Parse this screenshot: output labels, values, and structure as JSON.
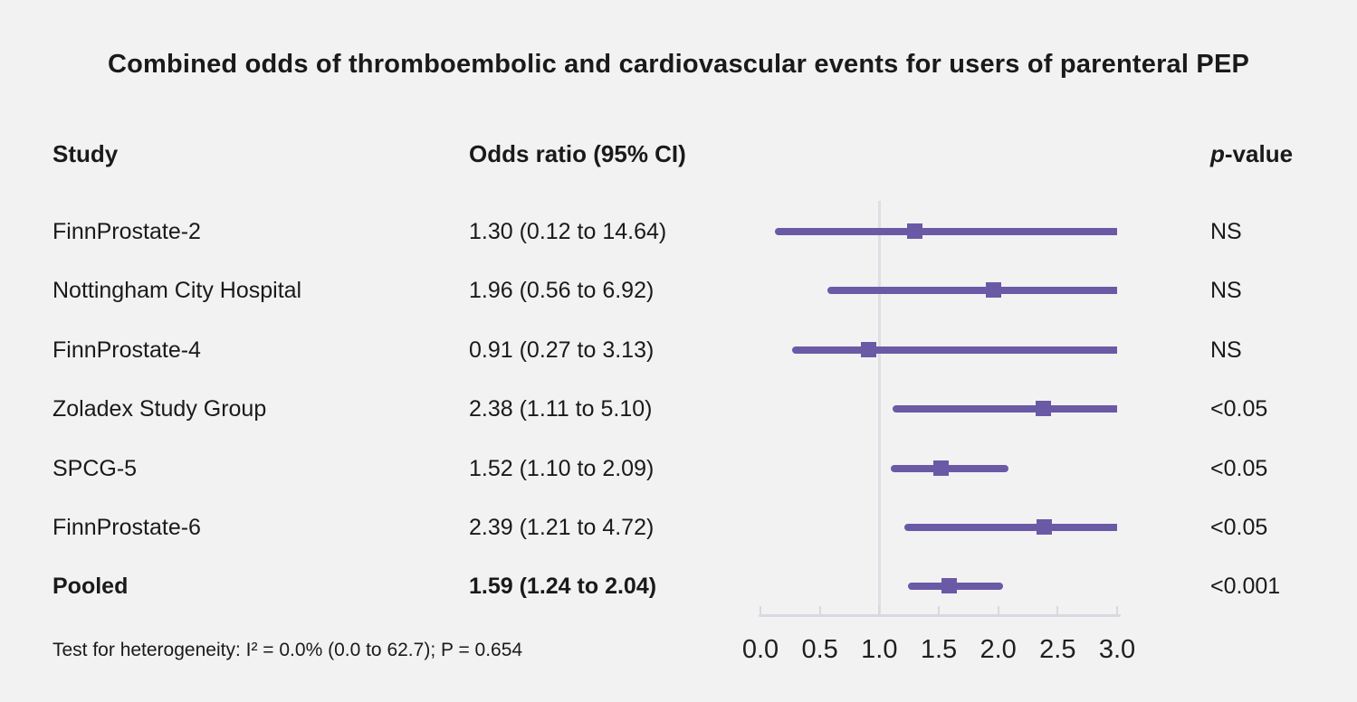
{
  "title": "Combined odds of thromboembolic and cardiovascular events for users of parenteral PEP",
  "columns": {
    "study": "Study",
    "odds_ratio": "Odds ratio (95% CI)",
    "p_value_italic": "p",
    "p_value_rest": "-value"
  },
  "chart_data": {
    "type": "forest",
    "xlim": [
      0.0,
      3.0
    ],
    "ticks": [
      0.0,
      0.5,
      1.0,
      1.5,
      2.0,
      2.5,
      3.0
    ],
    "reference_line_x": 1.0,
    "grid": "reference-line-only",
    "studies": [
      {
        "name": "FinnProstate-2",
        "odds_ratio": 1.3,
        "ci_low": 0.12,
        "ci_high": 14.64,
        "or_label": "1.30 (0.12 to 14.64)",
        "p_value": "NS",
        "is_pooled": false
      },
      {
        "name": "Nottingham City Hospital",
        "odds_ratio": 1.96,
        "ci_low": 0.56,
        "ci_high": 6.92,
        "or_label": "1.96 (0.56 to 6.92)",
        "p_value": "NS",
        "is_pooled": false
      },
      {
        "name": "FinnProstate-4",
        "odds_ratio": 0.91,
        "ci_low": 0.27,
        "ci_high": 3.13,
        "or_label": "0.91 (0.27 to 3.13)",
        "p_value": "NS",
        "is_pooled": false
      },
      {
        "name": "Zoladex Study Group",
        "odds_ratio": 2.38,
        "ci_low": 1.11,
        "ci_high": 5.1,
        "or_label": "2.38 (1.11 to 5.10)",
        "p_value": "<0.05",
        "is_pooled": false
      },
      {
        "name": "SPCG-5",
        "odds_ratio": 1.52,
        "ci_low": 1.1,
        "ci_high": 2.09,
        "or_label": "1.52 (1.10 to 2.09)",
        "p_value": "<0.05",
        "is_pooled": false
      },
      {
        "name": "FinnProstate-6",
        "odds_ratio": 2.39,
        "ci_low": 1.21,
        "ci_high": 4.72,
        "or_label": "2.39 (1.21 to 4.72)",
        "p_value": "<0.05",
        "is_pooled": false
      },
      {
        "name": "Pooled",
        "odds_ratio": 1.59,
        "ci_low": 1.24,
        "ci_high": 2.04,
        "or_label": "1.59 (1.24 to 2.04)",
        "p_value": "<0.001",
        "is_pooled": true
      }
    ]
  },
  "footer": "Test for heterogeneity: I² = 0.0% (0.0 to 62.7); P = 0.654",
  "colors": {
    "background": "#f2f2f2",
    "text": "#1a1a1a",
    "interval_line": "#6a5aa6",
    "marker": "#6a5aa6",
    "reference_line": "#dce0e5",
    "axis": "#d7dadf"
  }
}
